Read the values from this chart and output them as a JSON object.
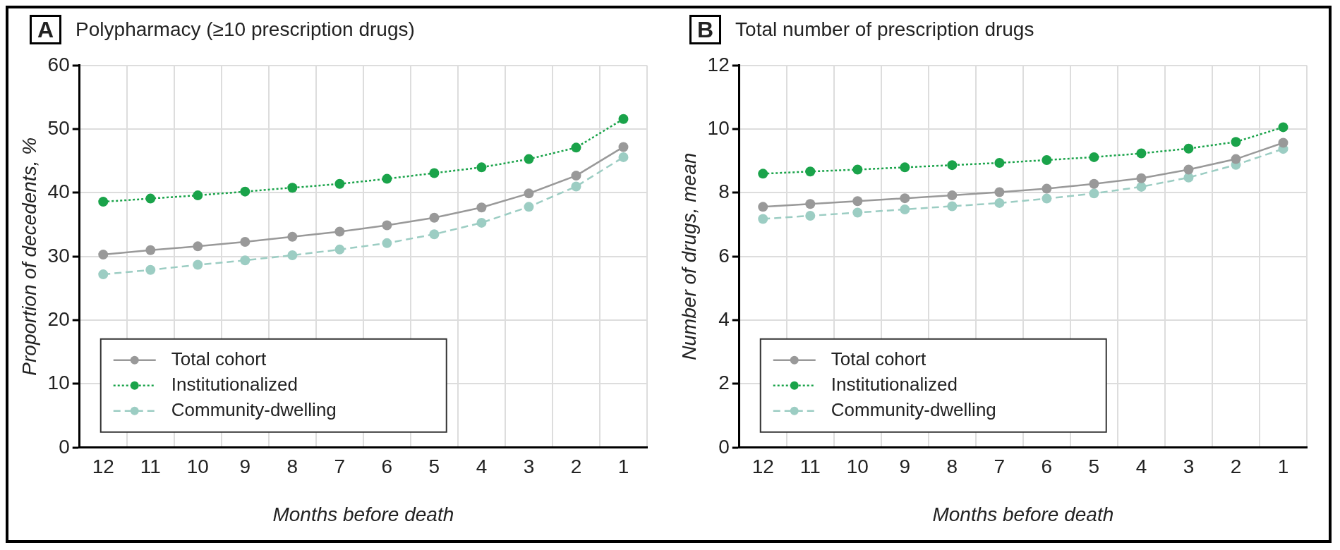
{
  "chart_data": [
    {
      "type": "line",
      "title": "Polypharmacy (≥10 prescription drugs)",
      "annotations": [
        "A"
      ],
      "xlabel": "Months before death",
      "ylabel": "Proportion of decedents, %",
      "categories": [
        "12",
        "11",
        "10",
        "9",
        "8",
        "7",
        "6",
        "5",
        "4",
        "3",
        "2",
        "1"
      ],
      "ylim": [
        0,
        60
      ],
      "yticks": [
        0,
        10,
        20,
        30,
        40,
        50,
        60
      ],
      "grid": true,
      "legend": "bottom left",
      "marker": "circle",
      "series": [
        {
          "name": "Total cohort",
          "color": "#999999",
          "line_style": "solid",
          "values": [
            30.3,
            31.0,
            31.6,
            32.3,
            33.1,
            33.9,
            34.9,
            36.1,
            37.7,
            39.9,
            42.7,
            47.2
          ]
        },
        {
          "name": "Institutionalized",
          "color": "#1aa34a",
          "line_style": "dotted",
          "values": [
            38.6,
            39.1,
            39.6,
            40.2,
            40.8,
            41.4,
            42.2,
            43.1,
            44.0,
            45.3,
            47.1,
            51.6
          ]
        },
        {
          "name": "Community-dwelling",
          "color": "#9ccdc3",
          "line_style": "dashed",
          "values": [
            27.2,
            27.9,
            28.7,
            29.4,
            30.2,
            31.1,
            32.1,
            33.5,
            35.3,
            37.8,
            41.0,
            45.6
          ]
        }
      ]
    },
    {
      "type": "line",
      "title": "Total number of prescription drugs",
      "annotations": [
        "B"
      ],
      "xlabel": "Months before death",
      "ylabel": "Number of drugs, mean",
      "categories": [
        "12",
        "11",
        "10",
        "9",
        "8",
        "7",
        "6",
        "5",
        "4",
        "3",
        "2",
        "1"
      ],
      "ylim": [
        0,
        12
      ],
      "yticks": [
        0,
        2,
        4,
        6,
        8,
        10,
        12
      ],
      "grid": true,
      "legend": "bottom left",
      "marker": "circle",
      "series": [
        {
          "name": "Total cohort",
          "color": "#999999",
          "line_style": "solid",
          "values": [
            7.56,
            7.65,
            7.74,
            7.83,
            7.92,
            8.02,
            8.13,
            8.28,
            8.46,
            8.73,
            9.06,
            9.57
          ]
        },
        {
          "name": "Institutionalized",
          "color": "#1aa34a",
          "line_style": "dotted",
          "values": [
            8.6,
            8.67,
            8.73,
            8.8,
            8.87,
            8.94,
            9.03,
            9.12,
            9.24,
            9.39,
            9.6,
            10.06
          ]
        },
        {
          "name": "Community-dwelling",
          "color": "#9ccdc3",
          "line_style": "dashed",
          "values": [
            7.18,
            7.28,
            7.38,
            7.48,
            7.58,
            7.68,
            7.82,
            7.98,
            8.19,
            8.48,
            8.88,
            9.38
          ]
        }
      ]
    }
  ]
}
